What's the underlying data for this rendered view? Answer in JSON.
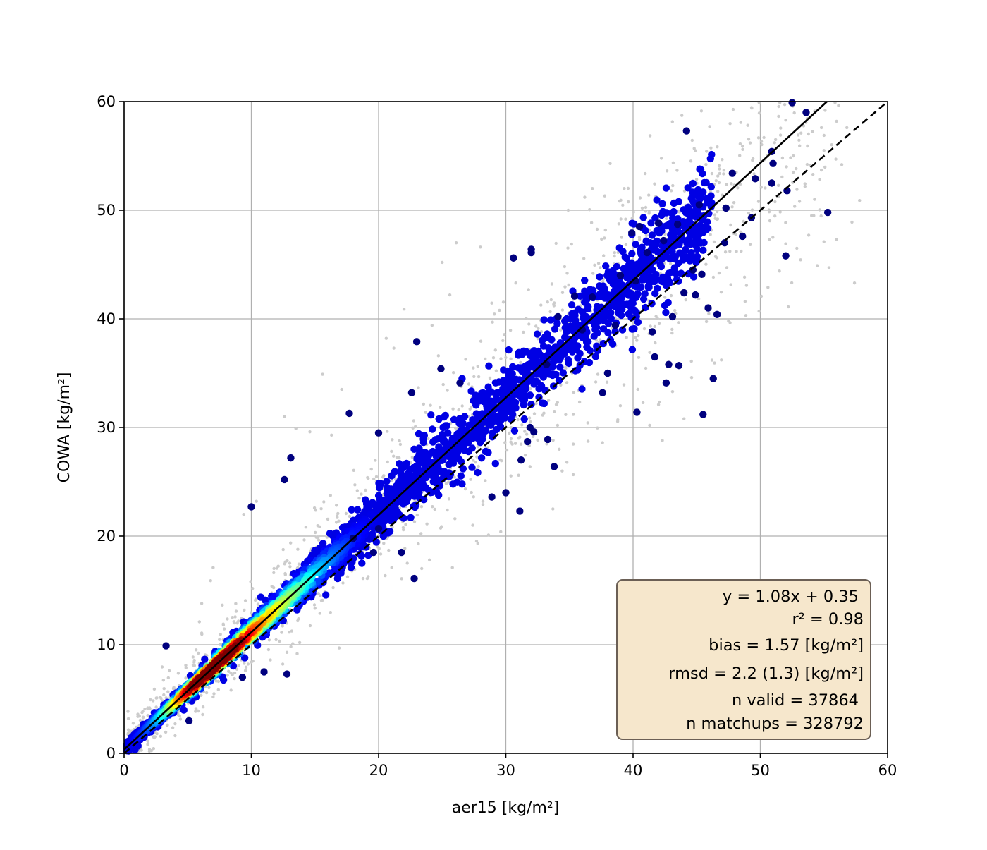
{
  "chart_data": {
    "type": "scatter",
    "xlabel": "aer15 [kg/m²]",
    "ylabel": "COWA [kg/m²]",
    "xlim": [
      0,
      60
    ],
    "ylim": [
      0,
      60
    ],
    "xticks": [
      "0",
      "10",
      "20",
      "30",
      "40",
      "50",
      "60"
    ],
    "yticks": [
      "0",
      "10",
      "20",
      "30",
      "40",
      "50",
      "60"
    ],
    "grid": true,
    "colormap": "jet (point density)",
    "background_point_color": "#cccccc",
    "lines": [
      {
        "style": "solid",
        "color": "#000000",
        "slope": 1.08,
        "intercept": 0.35
      },
      {
        "style": "dashed",
        "color": "#000000",
        "slope": 1.0,
        "intercept": 0.0
      }
    ],
    "stats": {
      "fit": "y = 1.08x + 0.35",
      "r2": "r² = 0.98",
      "bias": "bias = 1.57 [kg/m²]",
      "rmsd": "rmsd = 2.2 (1.3) [kg/m²]",
      "n_valid": "n valid = 37864",
      "n_matchups": "n matchups = 328792",
      "box_color": "#f6e7cc"
    },
    "outlier_points_navy": [
      [
        52.5,
        59.9
      ],
      [
        53.6,
        59.0
      ],
      [
        44.2,
        57.3
      ],
      [
        50.9,
        55.4
      ],
      [
        51.0,
        54.3
      ],
      [
        55.3,
        49.8
      ],
      [
        49.6,
        52.9
      ],
      [
        50.9,
        52.5
      ],
      [
        52.1,
        51.8
      ],
      [
        49.3,
        49.3
      ],
      [
        48.6,
        47.6
      ],
      [
        45.2,
        50.5
      ],
      [
        42.0,
        48.8
      ],
      [
        40.5,
        48.5
      ],
      [
        39.9,
        47.9
      ],
      [
        41.1,
        46.1
      ],
      [
        45.4,
        44.1
      ],
      [
        44.9,
        42.2
      ],
      [
        44.0,
        42.4
      ],
      [
        45.9,
        41.0
      ],
      [
        43.1,
        40.2
      ],
      [
        42.8,
        35.8
      ],
      [
        43.6,
        35.7
      ],
      [
        42.6,
        34.1
      ],
      [
        46.3,
        34.5
      ],
      [
        45.5,
        31.2
      ],
      [
        40.3,
        31.4
      ],
      [
        41.7,
        36.5
      ],
      [
        41.5,
        38.8
      ],
      [
        38.0,
        35.0
      ],
      [
        37.6,
        33.2
      ],
      [
        33.2,
        35.8
      ],
      [
        33.3,
        28.9
      ],
      [
        32.2,
        29.6
      ],
      [
        31.9,
        30.0
      ],
      [
        31.7,
        28.7
      ],
      [
        31.2,
        27.0
      ],
      [
        33.8,
        26.4
      ],
      [
        30.0,
        24.0
      ],
      [
        28.9,
        23.6
      ],
      [
        31.1,
        22.3
      ],
      [
        32.0,
        46.1
      ],
      [
        30.6,
        45.6
      ],
      [
        32.0,
        46.4
      ],
      [
        35.4,
        42.1
      ],
      [
        36.8,
        42.0
      ],
      [
        34.1,
        40.2
      ],
      [
        23.0,
        37.9
      ],
      [
        24.9,
        35.4
      ],
      [
        26.4,
        34.1
      ],
      [
        22.6,
        33.2
      ],
      [
        17.7,
        31.3
      ],
      [
        20.0,
        29.5
      ],
      [
        13.1,
        27.2
      ],
      [
        12.6,
        25.2
      ],
      [
        10.0,
        22.7
      ],
      [
        22.8,
        16.1
      ],
      [
        21.8,
        18.5
      ],
      [
        20.0,
        20.7
      ],
      [
        19.6,
        18.5
      ],
      [
        18.0,
        19.8
      ],
      [
        12.8,
        7.3
      ],
      [
        11.0,
        7.5
      ],
      [
        9.3,
        7.0
      ],
      [
        3.3,
        9.9
      ],
      [
        5.1,
        3.0
      ],
      [
        36.0,
        39.0
      ],
      [
        38.6,
        39.4
      ],
      [
        39.0,
        44.0
      ],
      [
        40.2,
        43.5
      ],
      [
        46.6,
        40.4
      ],
      [
        47.2,
        47.0
      ],
      [
        47.8,
        53.4
      ],
      [
        47.3,
        50.2
      ],
      [
        52.0,
        45.8
      ],
      [
        44.7,
        44.5
      ],
      [
        43.5,
        48.7
      ],
      [
        42.4,
        47.2
      ]
    ],
    "outlier_points_gray": [
      [
        52.0,
        58.3
      ],
      [
        53.2,
        57.1
      ],
      [
        54.8,
        57.6
      ],
      [
        56.8,
        57.6
      ],
      [
        55.0,
        55.5
      ],
      [
        51.2,
        56.5
      ],
      [
        49.2,
        56.2
      ],
      [
        48.6,
        55.9
      ],
      [
        52.6,
        55.0
      ],
      [
        54.8,
        53.7
      ],
      [
        56.4,
        54.2
      ],
      [
        57.8,
        50.9
      ],
      [
        57.2,
        48.9
      ],
      [
        54.2,
        49.5
      ],
      [
        55.0,
        47.1
      ],
      [
        52.0,
        46.9
      ],
      [
        50.7,
        47.3
      ],
      [
        53.8,
        47.7
      ],
      [
        39.3,
        52.0
      ],
      [
        38.2,
        54.3
      ],
      [
        43.0,
        51.8
      ],
      [
        41.0,
        49.9
      ],
      [
        46.1,
        51.3
      ],
      [
        36.8,
        52.0
      ],
      [
        36.2,
        51.2
      ],
      [
        34.9,
        50.0
      ],
      [
        28.0,
        46.6
      ],
      [
        26.1,
        47.0
      ],
      [
        25.0,
        45.2
      ],
      [
        25.6,
        42.2
      ],
      [
        24.2,
        39.4
      ],
      [
        24.7,
        36.6
      ],
      [
        20.6,
        38.2
      ],
      [
        22.0,
        40.9
      ],
      [
        21.2,
        37.3
      ],
      [
        15.6,
        34.9
      ],
      [
        17.1,
        33.5
      ],
      [
        14.6,
        29.6
      ],
      [
        16.3,
        29.3
      ],
      [
        13.5,
        29.9
      ],
      [
        12.6,
        31.0
      ],
      [
        9.4,
        22.0
      ],
      [
        10.4,
        23.2
      ],
      [
        6.1,
        13.8
      ],
      [
        6.8,
        15.9
      ],
      [
        7.0,
        17.1
      ],
      [
        11.5,
        8.6
      ],
      [
        12.8,
        9.3
      ],
      [
        16.9,
        9.7
      ],
      [
        13.8,
        10.2
      ],
      [
        8.7,
        7.4
      ],
      [
        7.0,
        5.2
      ],
      [
        27.8,
        19.3
      ],
      [
        27.4,
        21.0
      ],
      [
        26.0,
        21.6
      ],
      [
        25.4,
        22.4
      ],
      [
        25.8,
        17.1
      ],
      [
        24.0,
        17.8
      ],
      [
        28.2,
        23.2
      ],
      [
        29.6,
        20.4
      ],
      [
        31.0,
        25.6
      ],
      [
        33.7,
        22.5
      ],
      [
        31.9,
        26.4
      ],
      [
        34.2,
        28.0
      ],
      [
        35.3,
        31.2
      ],
      [
        39.0,
        32.0
      ],
      [
        42.0,
        32.1
      ],
      [
        43.1,
        33.3
      ],
      [
        44.6,
        34.6
      ],
      [
        46.2,
        36.2
      ],
      [
        47.5,
        39.8
      ],
      [
        48.8,
        41.6
      ],
      [
        49.9,
        40.7
      ],
      [
        50.6,
        42.9
      ],
      [
        51.5,
        44.4
      ],
      [
        55.4,
        44.7
      ],
      [
        57.4,
        43.3
      ],
      [
        42.3,
        28.8
      ],
      [
        34.8,
        26.8
      ],
      [
        38.8,
        30.7
      ],
      [
        36.0,
        33.4
      ],
      [
        37.6,
        28.6
      ],
      [
        41.3,
        30.2
      ],
      [
        44.0,
        30.8
      ]
    ]
  }
}
